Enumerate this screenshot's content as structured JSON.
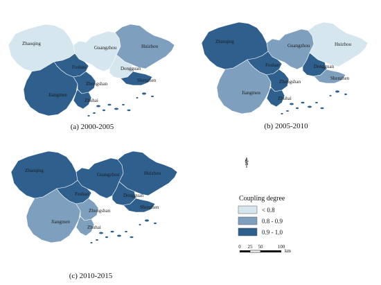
{
  "colors": {
    "lt_0_8": "#d6e6ee",
    "0_8_to_0_9": "#7e9fbd",
    "0_9_to_1_0": "#2e5f8d",
    "background": "#ffffff"
  },
  "maps": [
    {
      "caption": "(a) 2000-2005",
      "cities": [
        {
          "name": "Zhaoqing",
          "class": "< 0.8"
        },
        {
          "name": "Guangzhou",
          "class": "< 0.8"
        },
        {
          "name": "Huizhou",
          "class": "0.8 - 0.9"
        },
        {
          "name": "Foshan",
          "class": "0.9 - 1.0"
        },
        {
          "name": "Dongguan",
          "class": "< 0.8"
        },
        {
          "name": "Shenzhen",
          "class": "0.9 - 1.0"
        },
        {
          "name": "Jiangmen",
          "class": "0.9 - 1.0"
        },
        {
          "name": "Zhongshan",
          "class": "0.9 - 1.0"
        },
        {
          "name": "Zhuhai",
          "class": "0.9 - 1.0"
        }
      ]
    },
    {
      "caption": "(b) 2005-2010",
      "cities": [
        {
          "name": "Zhaoqing",
          "class": "0.9 - 1.0"
        },
        {
          "name": "Guangzhou",
          "class": "0.8 - 0.9"
        },
        {
          "name": "Huizhou",
          "class": "< 0.8"
        },
        {
          "name": "Foshan",
          "class": "0.9 - 1.0"
        },
        {
          "name": "Dongguan",
          "class": "0.9 - 1.0"
        },
        {
          "name": "Shenzhen",
          "class": "0.8 - 0.9"
        },
        {
          "name": "Jiangmen",
          "class": "0.8 - 0.9"
        },
        {
          "name": "Zhongshan",
          "class": "0.9 - 1.0"
        },
        {
          "name": "Zhuhai",
          "class": "0.9 - 1.0"
        }
      ]
    },
    {
      "caption": "(c) 2010-2015",
      "cities": [
        {
          "name": "Zhaoqing",
          "class": "0.9 - 1.0"
        },
        {
          "name": "Guangzhou",
          "class": "0.9 - 1.0"
        },
        {
          "name": "Huizhou",
          "class": "0.9 - 1.0"
        },
        {
          "name": "Foshan",
          "class": "0.9 - 1.0"
        },
        {
          "name": "Dongguan",
          "class": "0.9 - 1.0"
        },
        {
          "name": "Shenzhen",
          "class": "0.9 - 1.0"
        },
        {
          "name": "Jiangmen",
          "class": "0.8 - 0.9"
        },
        {
          "name": "Zhongshan",
          "class": "0.8 - 0.9"
        },
        {
          "name": "Zhuhai",
          "class": "0.8 - 0.9"
        }
      ]
    }
  ],
  "legend": {
    "title": "Coupling degree",
    "items": [
      {
        "label": "< 0.8",
        "class": "< 0.8"
      },
      {
        "label": "0.8 - 0.9",
        "class": "0.8 - 0.9"
      },
      {
        "label": "0.9 - 1.0",
        "class": "0.9 - 1.0"
      }
    ]
  },
  "north_arrow": {
    "label": "N"
  },
  "scale_bar": {
    "ticks": [
      "0",
      "25",
      "50",
      "100"
    ],
    "unit": "km"
  }
}
